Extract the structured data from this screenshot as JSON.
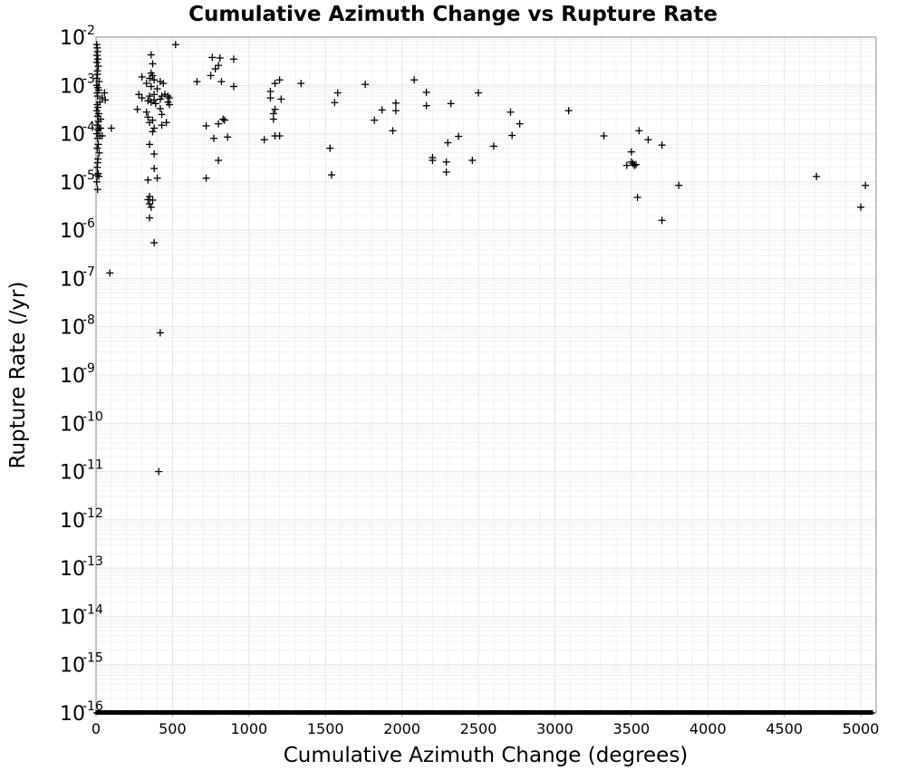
{
  "chart_data": {
    "type": "scatter",
    "title": "Cumulative Azimuth Change vs Rupture Rate",
    "xlabel": "Cumulative Azimuth Change (degrees)",
    "ylabel": "Rupture Rate (/yr)",
    "xlim": [
      0,
      5100
    ],
    "ylim_log10": [
      -16,
      -2
    ],
    "y_scale": "log",
    "grid": true,
    "x_ticks": [
      0,
      500,
      1000,
      1500,
      2000,
      2500,
      3000,
      3500,
      4000,
      4500,
      5000
    ],
    "y_ticks": [
      {
        "base": "10",
        "exp": "-2",
        "v": -2
      },
      {
        "base": "10",
        "exp": "-3",
        "v": -3
      },
      {
        "base": "10",
        "exp": "-4",
        "v": -4
      },
      {
        "base": "10",
        "exp": "-5",
        "v": -5
      },
      {
        "base": "10",
        "exp": "-6",
        "v": -6
      },
      {
        "base": "10",
        "exp": "-7",
        "v": -7
      },
      {
        "base": "10",
        "exp": "-8",
        "v": -8
      },
      {
        "base": "10",
        "exp": "-9",
        "v": -9
      },
      {
        "base": "10",
        "exp": "-10",
        "v": -10
      },
      {
        "base": "10",
        "exp": "-11",
        "v": -11
      },
      {
        "base": "10",
        "exp": "-12",
        "v": -12
      },
      {
        "base": "10",
        "exp": "-13",
        "v": -13
      },
      {
        "base": "10",
        "exp": "-14",
        "v": -14
      },
      {
        "base": "10",
        "exp": "-15",
        "v": -15
      },
      {
        "base": "10",
        "exp": "-16",
        "v": -16
      }
    ],
    "series": [
      {
        "marker": "+",
        "color": "#000000",
        "points": [
          [
            520,
            0.007
          ],
          [
            360,
            0.0043
          ],
          [
            760,
            0.0038
          ],
          [
            810,
            0.0037
          ],
          [
            900,
            0.0035
          ],
          [
            370,
            0.0028
          ],
          [
            800,
            0.0026
          ],
          [
            780,
            0.0022
          ],
          [
            750,
            0.0016
          ],
          [
            660,
            0.0012
          ],
          [
            820,
            0.0012
          ],
          [
            1200,
            0.0013
          ],
          [
            1170,
            0.0011
          ],
          [
            1340,
            0.0011
          ],
          [
            1760,
            0.00105
          ],
          [
            2080,
            0.0013
          ],
          [
            900,
            0.00095
          ],
          [
            1140,
            0.00075
          ],
          [
            1580,
            0.0007
          ],
          [
            2160,
            0.00072
          ],
          [
            2500,
            0.0007
          ],
          [
            1140,
            0.00055
          ],
          [
            1210,
            0.00052
          ],
          [
            1560,
            0.00044
          ],
          [
            1960,
            0.00043
          ],
          [
            2320,
            0.00042
          ],
          [
            2160,
            0.00038
          ],
          [
            1170,
            0.00032
          ],
          [
            1160,
            0.00026
          ],
          [
            1870,
            0.00031
          ],
          [
            1960,
            0.0003
          ],
          [
            2710,
            0.00028
          ],
          [
            3090,
            0.0003
          ],
          [
            1160,
            0.0002
          ],
          [
            1820,
            0.00019
          ],
          [
            2770,
            0.00016
          ],
          [
            830,
            0.0002
          ],
          [
            800,
            0.00016
          ],
          [
            840,
            0.00019
          ],
          [
            720,
            0.000145
          ],
          [
            1940,
            0.000115
          ],
          [
            1170,
            9e-05
          ],
          [
            1200,
            9e-05
          ],
          [
            1100,
            7.5e-05
          ],
          [
            860,
            8.5e-05
          ],
          [
            770,
            8e-05
          ],
          [
            2370,
            8.8e-05
          ],
          [
            2720,
            9.2e-05
          ],
          [
            2300,
            6.5e-05
          ],
          [
            2600,
            5.5e-05
          ],
          [
            1530,
            5e-05
          ],
          [
            3320,
            9e-05
          ],
          [
            3550,
            0.000115
          ],
          [
            3610,
            7.5e-05
          ],
          [
            3700,
            5.8e-05
          ],
          [
            3500,
            4.2e-05
          ],
          [
            2200,
            3.2e-05
          ],
          [
            2200,
            2.8e-05
          ],
          [
            2290,
            2.6e-05
          ],
          [
            2460,
            2.8e-05
          ],
          [
            800,
            2.8e-05
          ],
          [
            3500,
            2.6e-05
          ],
          [
            3510,
            2.4e-05
          ],
          [
            3520,
            2.2e-05
          ],
          [
            3470,
            2.2e-05
          ],
          [
            3530,
            2.3e-05
          ],
          [
            2290,
            1.6e-05
          ],
          [
            1540,
            1.4e-05
          ],
          [
            720,
            1.2e-05
          ],
          [
            4710,
            1.3e-05
          ],
          [
            3810,
            8.5e-06
          ],
          [
            5030,
            8.5e-06
          ],
          [
            3540,
            4.8e-06
          ],
          [
            5000,
            3e-06
          ],
          [
            3700,
            1.6e-06
          ],
          [
            90,
            1.3e-07
          ],
          [
            420,
            7.5e-09
          ],
          [
            410,
            1e-11
          ],
          [
            360,
            0.0018
          ],
          [
            370,
            0.0016
          ],
          [
            350,
            0.0014
          ],
          [
            380,
            0.0013
          ],
          [
            420,
            0.0012
          ],
          [
            440,
            0.0011
          ],
          [
            300,
            0.0015
          ],
          [
            330,
            0.0011
          ],
          [
            360,
            0.00095
          ],
          [
            400,
            0.00085
          ],
          [
            380,
            0.00065
          ],
          [
            350,
            0.0006
          ],
          [
            280,
            0.00065
          ],
          [
            300,
            0.00055
          ],
          [
            430,
            0.0006
          ],
          [
            450,
            0.00065
          ],
          [
            470,
            0.0006
          ],
          [
            480,
            0.00055
          ],
          [
            420,
            0.00052
          ],
          [
            470,
            0.00045
          ],
          [
            480,
            0.0004
          ],
          [
            380,
            0.0005
          ],
          [
            340,
            0.00048
          ],
          [
            360,
            0.00045
          ],
          [
            390,
            0.00042
          ],
          [
            270,
            0.00032
          ],
          [
            330,
            0.00028
          ],
          [
            420,
            0.00033
          ],
          [
            430,
            0.00025
          ],
          [
            340,
            0.00022
          ],
          [
            370,
            0.00019
          ],
          [
            350,
            0.00017
          ],
          [
            460,
            0.00017
          ],
          [
            430,
            0.00015
          ],
          [
            380,
            0.00013
          ],
          [
            370,
            0.00011
          ],
          [
            350,
            6e-05
          ],
          [
            380,
            3.8e-05
          ],
          [
            380,
            1.9e-05
          ],
          [
            400,
            1.2e-05
          ],
          [
            340,
            1.1e-05
          ],
          [
            350,
            5e-06
          ],
          [
            340,
            4.3e-06
          ],
          [
            370,
            4.2e-06
          ],
          [
            360,
            3e-06
          ],
          [
            350,
            3.5e-06
          ],
          [
            350,
            1.8e-06
          ],
          [
            380,
            5.5e-07
          ],
          [
            5,
            0.007
          ],
          [
            8,
            0.006
          ],
          [
            10,
            0.005
          ],
          [
            6,
            0.0042
          ],
          [
            12,
            0.0035
          ],
          [
            5,
            0.003
          ],
          [
            15,
            0.0025
          ],
          [
            8,
            0.002
          ],
          [
            10,
            0.0017
          ],
          [
            6,
            0.0014
          ],
          [
            20,
            0.0012
          ],
          [
            5,
            0.001
          ],
          [
            12,
            0.0009
          ],
          [
            18,
            0.0008
          ],
          [
            8,
            0.0007
          ],
          [
            10,
            0.0006
          ],
          [
            40,
            0.00055
          ],
          [
            55,
            0.0007
          ],
          [
            60,
            0.0005
          ],
          [
            25,
            0.00045
          ],
          [
            8,
            0.0004
          ],
          [
            12,
            0.00035
          ],
          [
            5,
            0.0003
          ],
          [
            18,
            0.00026
          ],
          [
            10,
            0.00023
          ],
          [
            30,
            0.0002
          ],
          [
            15,
            0.00018
          ],
          [
            8,
            0.00015
          ],
          [
            20,
            0.00013
          ],
          [
            30,
            0.00013
          ],
          [
            100,
            0.00013
          ],
          [
            12,
            0.00012
          ],
          [
            6,
            0.0001
          ],
          [
            25,
            9e-05
          ],
          [
            40,
            9e-05
          ],
          [
            10,
            8e-05
          ],
          [
            15,
            6e-05
          ],
          [
            8,
            5e-05
          ],
          [
            20,
            4e-05
          ],
          [
            10,
            2.5e-05
          ],
          [
            15,
            1.5e-05
          ],
          [
            8,
            1.4e-05
          ],
          [
            18,
            1.3e-05
          ],
          [
            5,
            1e-05
          ],
          [
            10,
            7e-06
          ],
          [
            8,
            2e-05
          ],
          [
            12,
            3e-05
          ]
        ]
      }
    ],
    "floor_row": {
      "y_log10": -16,
      "x_range": [
        0,
        5080
      ],
      "note": ""
    }
  }
}
